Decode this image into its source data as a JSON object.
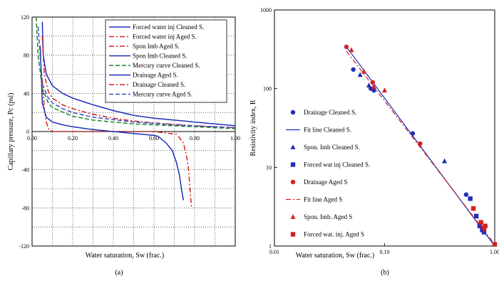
{
  "chart_data": [
    {
      "type": "line",
      "panel_label": "(a)",
      "xlabel": "Water saturation, Sw (frac.)",
      "ylabel": "Capillary pressure, Pc (psi)",
      "xlim": [
        0,
        1
      ],
      "ylim": [
        -120,
        120
      ],
      "xticks": [
        "0.00",
        "0.20",
        "0.40",
        "0.60",
        "0.80",
        "1.00"
      ],
      "yticks": [
        "120",
        "80",
        "40",
        "0",
        "-40",
        "-80",
        "-120"
      ],
      "grid": true,
      "legend_position": "top-right",
      "series": [
        {
          "name": "Forced water inj Cleaned S.",
          "color": "#1f2fb8",
          "dash": "solid",
          "x": [
            0.62,
            0.66,
            0.69,
            0.71,
            0.725,
            0.735,
            0.745
          ],
          "y": [
            -5,
            -12,
            -20,
            -32,
            -45,
            -60,
            -72
          ]
        },
        {
          "name": "Forced water inj Aged S.",
          "color": "#d42020",
          "dash": "dashdot",
          "x": [
            0.72,
            0.745,
            0.76,
            0.77,
            0.775,
            0.78,
            0.785
          ],
          "y": [
            -5,
            -12,
            -25,
            -40,
            -55,
            -68,
            -80
          ]
        },
        {
          "name": "Spon Imb Aged S.",
          "color": "#d42020",
          "dash": "dashdot",
          "x": [
            0.05,
            0.06,
            0.07,
            0.08,
            0.1,
            0.2,
            0.4,
            0.6,
            0.72
          ],
          "y": [
            55,
            25,
            10,
            3,
            0,
            0,
            0,
            0,
            -3
          ]
        },
        {
          "name": "Spon Imb Cleaned S.",
          "color": "#1f2fb8",
          "dash": "solid",
          "x": [
            0.04,
            0.05,
            0.07,
            0.1,
            0.15,
            0.2,
            0.3,
            0.4,
            0.5,
            0.6,
            0.62
          ],
          "y": [
            90,
            30,
            15,
            10,
            7,
            5,
            2,
            0,
            -2,
            -4,
            -5
          ]
        },
        {
          "name": "Mercury curve Cleaned S.",
          "color": "#1a8a2a",
          "dash": "dash",
          "x": [
            0.02,
            0.03,
            0.05,
            0.08,
            0.1,
            0.2,
            0.3,
            0.5,
            0.7,
            0.9,
            1.0
          ],
          "y": [
            120,
            80,
            45,
            30,
            25,
            16,
            12,
            8,
            6,
            4,
            3
          ]
        },
        {
          "name": "Drainage Aged S.",
          "color": "#1f2fb8",
          "dash": "solid",
          "x": [
            0.05,
            0.055,
            0.07,
            0.1,
            0.15,
            0.2,
            0.3,
            0.4,
            0.5,
            0.6,
            0.7,
            0.8,
            0.9,
            1.0
          ],
          "y": [
            115,
            80,
            60,
            48,
            40,
            35,
            28,
            22,
            17,
            14,
            12,
            10,
            8,
            6
          ]
        },
        {
          "name": "Drainage Cleaned S.",
          "color": "#d42020",
          "dash": "dashdot",
          "x": [
            0.05,
            0.06,
            0.08,
            0.1,
            0.15,
            0.2,
            0.3,
            0.4,
            0.5,
            0.6,
            0.8,
            1.0
          ],
          "y": [
            100,
            60,
            42,
            35,
            28,
            24,
            18,
            14,
            11,
            9,
            6,
            4
          ]
        },
        {
          "name": "Mercury curve Aged S.",
          "color": "#3a4ec8",
          "dash": "dash",
          "x": [
            0.03,
            0.05,
            0.08,
            0.1,
            0.15,
            0.2,
            0.3,
            0.5,
            0.7,
            0.9,
            1.0
          ],
          "y": [
            110,
            50,
            35,
            30,
            24,
            20,
            15,
            10,
            7,
            5,
            4
          ]
        }
      ]
    },
    {
      "type": "scatter",
      "panel_label": "(b)",
      "xlabel": "Water saturation, Sw (frac.)",
      "ylabel": "Resistivity index, R",
      "xscale": "log",
      "yscale": "log",
      "xlim": [
        0.01,
        1
      ],
      "ylim": [
        1,
        1000
      ],
      "xticks": [
        "0.01",
        "0.10",
        "1.00"
      ],
      "yticks": [
        "1000",
        "100",
        "10",
        "1"
      ],
      "grid": false,
      "legend_position": "left",
      "series": [
        {
          "name": "Drainage Cleaned S.",
          "color": "#1f2fb8",
          "marker": "circle",
          "x": [
            0.052,
            0.075,
            0.08,
            0.18,
            0.55
          ],
          "y": [
            175,
            100,
            95,
            27,
            4.5
          ]
        },
        {
          "name": "Fit line Cleaned S.",
          "color": "#1f2fb8",
          "marker": "line",
          "dash": "solid",
          "x": [
            0.045,
            1.0
          ],
          "y": [
            340,
            1.0
          ]
        },
        {
          "name": "Spon. Imb Cleaned S.",
          "color": "#1f2fb8",
          "marker": "triangle",
          "x": [
            0.06,
            0.072,
            0.35
          ],
          "y": [
            150,
            110,
            12
          ]
        },
        {
          "name": "Forced wat inj Cleaned S.",
          "color": "#1f2fb8",
          "marker": "square",
          "x": [
            0.6,
            0.68,
            0.73,
            0.77,
            0.8
          ],
          "y": [
            4,
            2.4,
            1.8,
            1.6,
            1.5
          ]
        },
        {
          "name": "Drainage Aged S",
          "color": "#d42020",
          "marker": "circle",
          "x": [
            0.045,
            0.078,
            0.21
          ],
          "y": [
            340,
            120,
            20
          ]
        },
        {
          "name": "Fit line Aged S",
          "color": "#d42020",
          "marker": "line",
          "dash": "dashdot",
          "x": [
            0.045,
            1.0
          ],
          "y": [
            300,
            1.05
          ]
        },
        {
          "name": "Spon. Imb. Aged S",
          "color": "#d42020",
          "marker": "triangle",
          "x": [
            0.05,
            0.065,
            0.08,
            0.1
          ],
          "y": [
            310,
            165,
            105,
            95
          ]
        },
        {
          "name": "Forced wat. inj. Aged S",
          "color": "#d42020",
          "marker": "square",
          "x": [
            0.64,
            0.75,
            0.8,
            0.82,
            1.0
          ],
          "y": [
            3,
            2,
            1.7,
            1.8,
            1.05
          ]
        }
      ]
    }
  ]
}
